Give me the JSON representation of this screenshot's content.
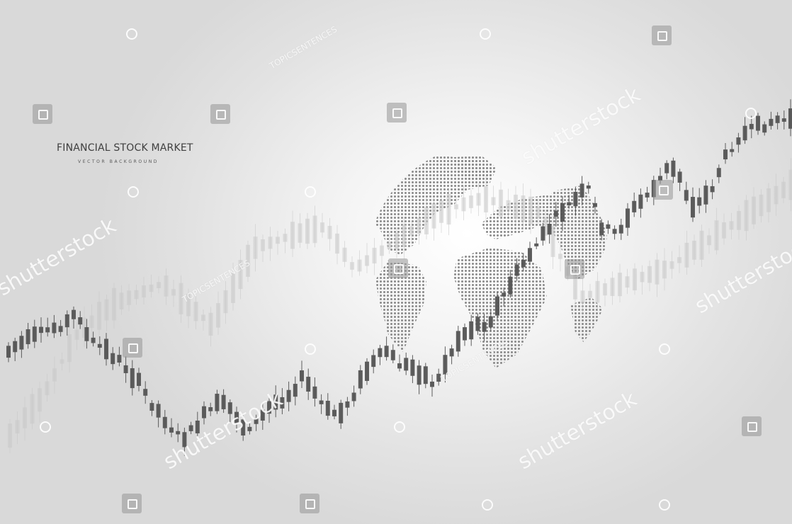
{
  "image": {
    "title": "FINANCIAL STOCK MARKET",
    "subtitle": "VECTOR BACKGROUND",
    "watermark_text": "shutterstock",
    "watermark_small": "TOPICSENTENCES",
    "palette": {
      "background_center": "#ffffff",
      "background_edge": "#d9d9d9",
      "candle_dark": "#555555",
      "candle_light": "#c8c8c8",
      "globe_dots": "#8a8a8a"
    }
  }
}
